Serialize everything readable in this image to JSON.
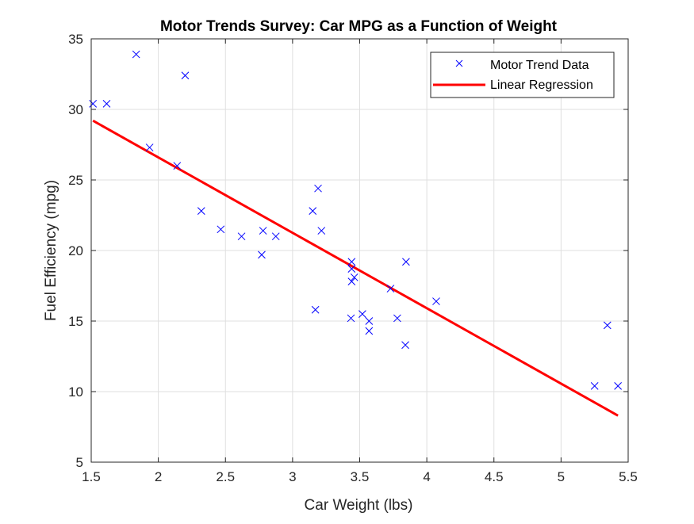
{
  "chart_data": {
    "type": "scatter",
    "title": "Motor Trends Survey: Car MPG as a Function of Weight",
    "xlabel": "Car Weight (lbs)",
    "ylabel": "Fuel Efficiency (mpg)",
    "xlim": [
      1.5,
      5.5
    ],
    "ylim": [
      5,
      35
    ],
    "xticks": [
      1.5,
      2,
      2.5,
      3,
      3.5,
      4,
      4.5,
      5,
      5.5
    ],
    "xtick_labels": [
      "1.5",
      "2",
      "2.5",
      "3",
      "3.5",
      "4",
      "4.5",
      "5",
      "5.5"
    ],
    "yticks": [
      5,
      10,
      15,
      20,
      25,
      30,
      35
    ],
    "ytick_labels": [
      "5",
      "10",
      "15",
      "20",
      "25",
      "30",
      "35"
    ],
    "grid": true,
    "legend_position": "top-right",
    "series": [
      {
        "name": "Motor Trend Data",
        "kind": "scatter",
        "marker": "x",
        "color": "#0000ff",
        "points": [
          {
            "x": 2.62,
            "y": 21.0
          },
          {
            "x": 2.875,
            "y": 21.0
          },
          {
            "x": 2.32,
            "y": 22.8
          },
          {
            "x": 3.215,
            "y": 21.4
          },
          {
            "x": 3.44,
            "y": 18.7
          },
          {
            "x": 3.46,
            "y": 18.1
          },
          {
            "x": 3.57,
            "y": 14.3
          },
          {
            "x": 3.19,
            "y": 24.4
          },
          {
            "x": 3.15,
            "y": 22.8
          },
          {
            "x": 3.44,
            "y": 19.2
          },
          {
            "x": 3.44,
            "y": 17.8
          },
          {
            "x": 4.07,
            "y": 16.4
          },
          {
            "x": 3.73,
            "y": 17.3
          },
          {
            "x": 3.78,
            "y": 15.2
          },
          {
            "x": 5.25,
            "y": 10.4
          },
          {
            "x": 5.424,
            "y": 10.4
          },
          {
            "x": 5.345,
            "y": 14.7
          },
          {
            "x": 2.2,
            "y": 32.4
          },
          {
            "x": 1.615,
            "y": 30.4
          },
          {
            "x": 1.835,
            "y": 33.9
          },
          {
            "x": 2.465,
            "y": 21.5
          },
          {
            "x": 3.52,
            "y": 15.5
          },
          {
            "x": 3.435,
            "y": 15.2
          },
          {
            "x": 3.84,
            "y": 13.3
          },
          {
            "x": 3.845,
            "y": 19.2
          },
          {
            "x": 1.935,
            "y": 27.3
          },
          {
            "x": 2.14,
            "y": 26.0
          },
          {
            "x": 1.513,
            "y": 30.4
          },
          {
            "x": 3.17,
            "y": 15.8
          },
          {
            "x": 2.77,
            "y": 19.7
          },
          {
            "x": 3.57,
            "y": 15.0
          },
          {
            "x": 2.78,
            "y": 21.4
          }
        ]
      },
      {
        "name": "Linear Regression",
        "kind": "line",
        "color": "#ff0000",
        "points": [
          {
            "x": 1.513,
            "y": 29.2
          },
          {
            "x": 5.424,
            "y": 8.3
          }
        ]
      }
    ]
  }
}
